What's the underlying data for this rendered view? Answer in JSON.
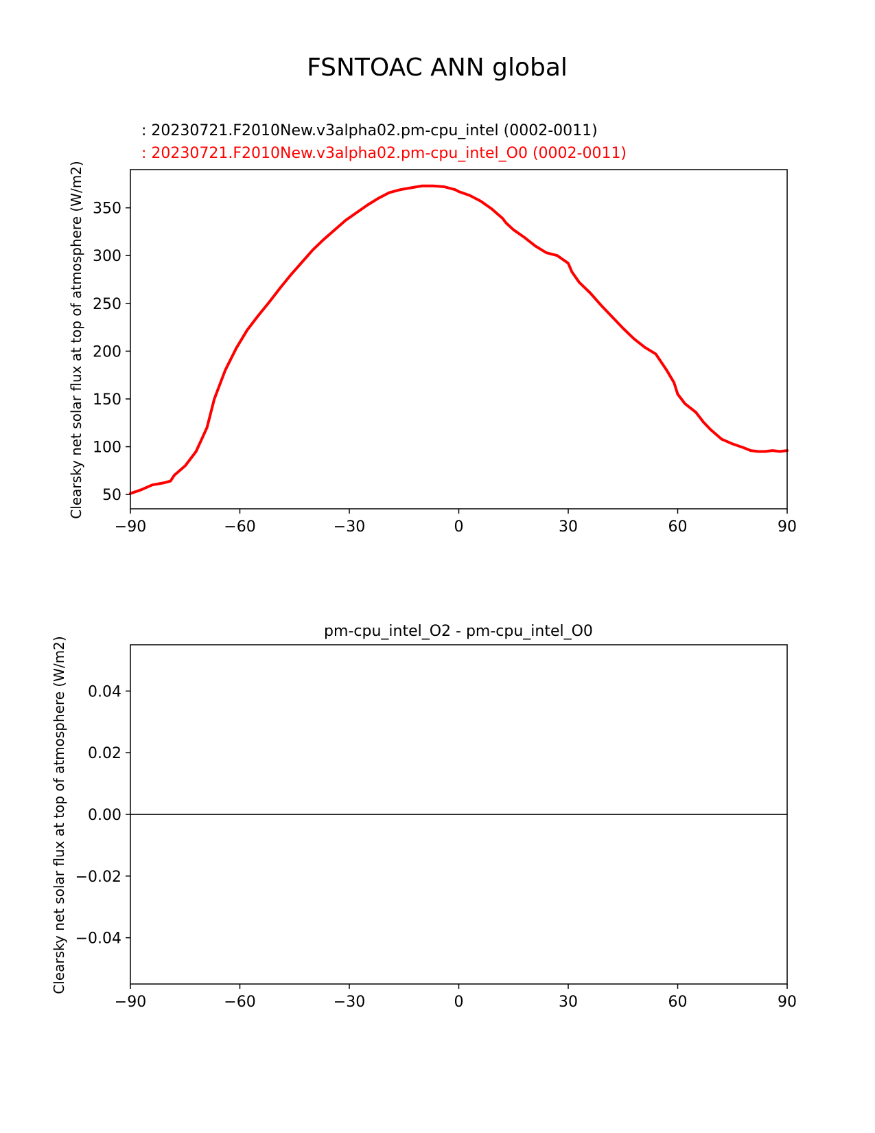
{
  "figure": {
    "title": "FSNTOAC ANN global"
  },
  "chart_data": [
    {
      "type": "line",
      "title": "",
      "legend_lines": [
        ": 20230721.F2010New.v3alpha02.pm-cpu_intel (0002-0011)",
        ": 20230721.F2010New.v3alpha02.pm-cpu_intel_O0 (0002-0011)"
      ],
      "legend_colors": [
        "#000000",
        "#ff0000"
      ],
      "xlabel": "",
      "ylabel": "Clearsky net solar flux at top of atmosphere (W/m2)",
      "xlim": [
        -90,
        90
      ],
      "ylim": [
        35,
        390
      ],
      "xticks": [
        -90,
        -60,
        -30,
        0,
        30,
        60,
        90
      ],
      "xtick_labels": [
        "−90",
        "−60",
        "−30",
        "0",
        "30",
        "60",
        "90"
      ],
      "yticks": [
        50,
        100,
        150,
        200,
        250,
        300,
        350
      ],
      "ytick_labels": [
        "50",
        "100",
        "150",
        "200",
        "250",
        "300",
        "350"
      ],
      "grid": false,
      "series": [
        {
          "color": "#ff0000",
          "x": [
            -90,
            -87,
            -84,
            -81,
            -79,
            -78,
            -75,
            -72,
            -69,
            -67,
            -64,
            -61,
            -58,
            -55,
            -52,
            -49,
            -46,
            -43,
            -40,
            -37,
            -34,
            -31,
            -28,
            -25,
            -22,
            -19,
            -16,
            -13,
            -10,
            -7,
            -4,
            -1,
            0,
            3,
            6,
            9,
            12,
            13,
            15,
            18,
            21,
            24,
            27,
            30,
            31,
            33,
            36,
            39,
            42,
            45,
            48,
            51,
            54,
            57,
            59,
            60,
            62,
            65,
            67,
            69,
            72,
            75,
            78,
            80,
            82,
            84,
            86,
            88,
            90
          ],
          "values": [
            51,
            55,
            60,
            62,
            64,
            70,
            80,
            95,
            120,
            150,
            180,
            203,
            222,
            237,
            251,
            266,
            280,
            293,
            306,
            317,
            327,
            337,
            345,
            353,
            360,
            366,
            369,
            371,
            373,
            373,
            372,
            369,
            367,
            363,
            357,
            349,
            339,
            334,
            327,
            319,
            310,
            303,
            300,
            292,
            283,
            272,
            261,
            248,
            236,
            224,
            213,
            204,
            197,
            180,
            167,
            155,
            145,
            136,
            126,
            118,
            108,
            103,
            99,
            96,
            95,
            95,
            96,
            95,
            96
          ]
        }
      ]
    },
    {
      "type": "line",
      "title": "pm-cpu_intel_O2 - pm-cpu_intel_O0",
      "xlabel": "",
      "ylabel": "Clearsky net solar flux at top of atmosphere (W/m2)",
      "xlim": [
        -90,
        90
      ],
      "ylim": [
        -0.055,
        0.055
      ],
      "xticks": [
        -90,
        -60,
        -30,
        0,
        30,
        60,
        90
      ],
      "xtick_labels": [
        "−90",
        "−60",
        "−30",
        "0",
        "30",
        "60",
        "90"
      ],
      "yticks": [
        -0.04,
        -0.02,
        0.0,
        0.02,
        0.04
      ],
      "ytick_labels": [
        "−0.04",
        "−0.02",
        "0.00",
        "0.02",
        "0.04"
      ],
      "grid": false,
      "series": [
        {
          "color": "#000000",
          "x": [
            -90,
            90
          ],
          "values": [
            0,
            0
          ]
        }
      ],
      "reference_line": {
        "y": 0,
        "color": "#808080"
      }
    }
  ]
}
